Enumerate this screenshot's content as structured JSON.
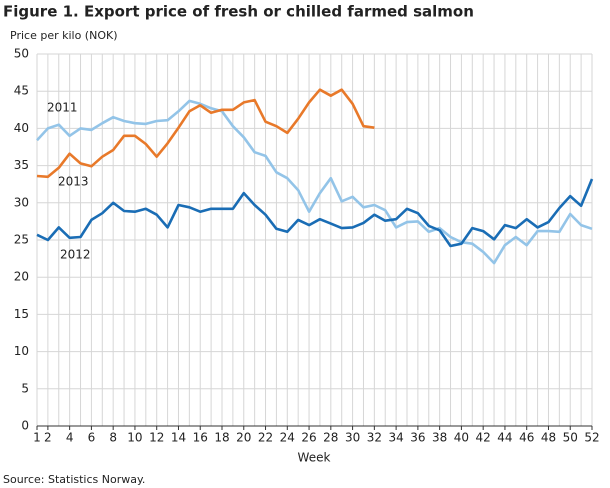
{
  "chart_data": {
    "type": "line",
    "title": "Figure 1. Export price of fresh or chilled farmed salmon",
    "y_label": "Price per kilo (NOK)",
    "x_label": "Week",
    "source": "Source: Statistics Norway.",
    "x": [
      1,
      2,
      3,
      4,
      5,
      6,
      7,
      8,
      9,
      10,
      11,
      12,
      13,
      14,
      15,
      16,
      17,
      18,
      19,
      20,
      21,
      22,
      23,
      24,
      25,
      26,
      27,
      28,
      29,
      30,
      31,
      32,
      33,
      34,
      35,
      36,
      37,
      38,
      39,
      40,
      41,
      42,
      43,
      44,
      45,
      46,
      47,
      48,
      49,
      50,
      51,
      52
    ],
    "xlim": [
      1,
      52
    ],
    "xticks": [
      1,
      2,
      4,
      6,
      8,
      10,
      12,
      14,
      16,
      18,
      20,
      22,
      24,
      26,
      28,
      30,
      32,
      34,
      36,
      38,
      40,
      42,
      44,
      46,
      48,
      50,
      52
    ],
    "ylim": [
      0,
      50
    ],
    "yticks": [
      0,
      5,
      10,
      15,
      20,
      25,
      30,
      35,
      40,
      45,
      50
    ],
    "grid": true,
    "series": [
      {
        "name": "2011",
        "color": "#93c4e8",
        "values": [
          38.4,
          40.0,
          40.5,
          39.0,
          40.0,
          39.8,
          40.7,
          41.5,
          41.0,
          40.7,
          40.6,
          41.0,
          41.1,
          42.3,
          43.7,
          43.3,
          42.7,
          42.3,
          40.3,
          38.8,
          36.8,
          36.3,
          34.1,
          33.3,
          31.7,
          28.8,
          31.3,
          33.3,
          30.2,
          30.8,
          29.4,
          29.7,
          29.0,
          26.7,
          27.4,
          27.5,
          26.1,
          26.6,
          25.4,
          24.7,
          24.5,
          23.4,
          21.9,
          24.3,
          25.4,
          24.3,
          26.2,
          26.2,
          26.1,
          28.5,
          27.0,
          26.5
        ]
      },
      {
        "name": "2012",
        "color": "#1a6db5",
        "values": [
          25.7,
          25.0,
          26.7,
          25.3,
          25.4,
          27.7,
          28.6,
          30.0,
          28.9,
          28.8,
          29.2,
          28.4,
          26.7,
          29.7,
          29.4,
          28.8,
          29.2,
          29.2,
          29.2,
          31.3,
          29.7,
          28.4,
          26.5,
          26.1,
          27.7,
          27.0,
          27.8,
          27.2,
          26.6,
          26.7,
          27.3,
          28.4,
          27.6,
          27.8,
          29.2,
          28.6,
          26.9,
          26.3,
          24.2,
          24.5,
          26.6,
          26.2,
          25.1,
          27.0,
          26.6,
          27.8,
          26.7,
          27.4,
          29.3,
          30.9,
          29.6,
          33.2
        ]
      },
      {
        "name": "2013",
        "color": "#e8792a",
        "values": [
          33.6,
          33.5,
          34.7,
          36.6,
          35.3,
          34.9,
          36.2,
          37.1,
          39.0,
          39.0,
          37.9,
          36.2,
          38.0,
          40.1,
          42.3,
          43.1,
          42.1,
          42.5,
          42.5,
          43.5,
          43.8,
          40.9,
          40.3,
          39.4,
          41.3,
          43.5,
          45.2,
          44.4,
          45.2,
          43.3,
          40.3,
          40.1,
          null,
          null,
          null,
          null,
          null,
          null,
          null,
          null,
          null,
          null,
          null,
          null,
          null,
          null,
          null,
          null,
          null,
          null,
          null,
          null
        ]
      }
    ]
  }
}
